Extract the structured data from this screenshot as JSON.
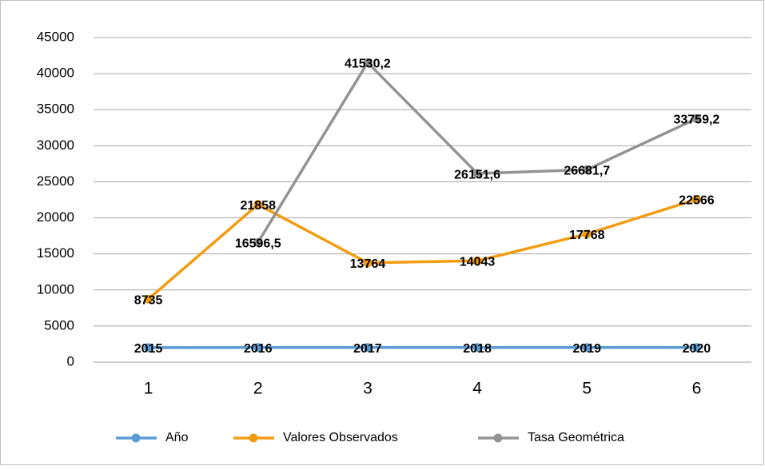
{
  "chart_data": {
    "type": "line",
    "categories": [
      "1",
      "2",
      "3",
      "4",
      "5",
      "6"
    ],
    "series": [
      {
        "name": "Año",
        "color": "#5b9bd5",
        "values": [
          2015,
          2016,
          2017,
          2018,
          2019,
          2020
        ]
      },
      {
        "name": "Valores Observados",
        "color": "#f39c12",
        "values": [
          8735,
          21858,
          13764,
          14043,
          17768,
          22566
        ]
      },
      {
        "name": "Tasa Geométrica",
        "color": "#939393",
        "values": [
          null,
          16596.5,
          41530.2,
          26151.6,
          26681.7,
          33759.2
        ],
        "value_labels": [
          null,
          "16596,5",
          "41530,2",
          "26151,6",
          "26681,7",
          "33759,2"
        ]
      }
    ],
    "ylim": [
      0,
      45000
    ],
    "yticks": [
      0,
      5000,
      10000,
      15000,
      20000,
      25000,
      30000,
      35000,
      40000,
      45000
    ],
    "grid": true,
    "legend": "bottom"
  }
}
